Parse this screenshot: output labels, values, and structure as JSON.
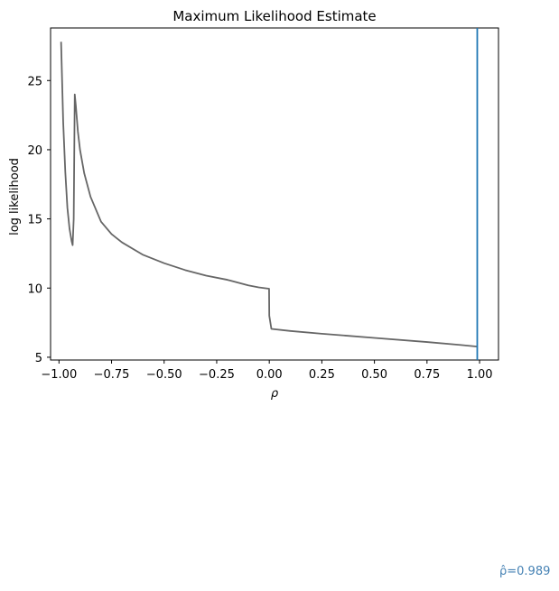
{
  "chart_data": {
    "type": "line",
    "title": "Maximum Likelihood Estimate",
    "xlabel": "ρ",
    "ylabel": "log likelihood",
    "xlim": [
      -1.04,
      1.09
    ],
    "ylim": [
      4.8,
      28.8
    ],
    "xticks": [
      -1.0,
      -0.75,
      -0.5,
      -0.25,
      0.0,
      0.25,
      0.5,
      0.75,
      1.0
    ],
    "xtick_labels": [
      "−1.00",
      "−0.75",
      "−0.50",
      "−0.25",
      "0.00",
      "0.25",
      "0.50",
      "0.75",
      "1.00"
    ],
    "yticks": [
      5,
      10,
      15,
      20,
      25
    ],
    "ytick_labels": [
      "5",
      "10",
      "15",
      "20",
      "25"
    ],
    "grid": false,
    "series": [
      {
        "color": "#666666",
        "x": [
          -0.99,
          -0.98,
          -0.97,
          -0.96,
          -0.95,
          -0.94,
          -0.935,
          -0.93,
          -0.925,
          -0.92,
          -0.91,
          -0.9,
          -0.88,
          -0.85,
          -0.8,
          -0.75,
          -0.7,
          -0.6,
          -0.5,
          -0.4,
          -0.3,
          -0.2,
          -0.1,
          -0.05,
          -0.001,
          0.0,
          0.01,
          0.1,
          0.25,
          0.5,
          0.75,
          0.9,
          0.989
        ],
        "y": [
          27.8,
          22.0,
          18.4,
          15.8,
          14.3,
          13.4,
          13.1,
          15.0,
          24.0,
          23.2,
          21.3,
          20.0,
          18.3,
          16.6,
          14.8,
          13.9,
          13.3,
          12.4,
          11.8,
          11.3,
          10.9,
          10.6,
          10.2,
          10.05,
          9.95,
          8.0,
          7.05,
          6.9,
          6.7,
          6.4,
          6.1,
          5.9,
          5.77
        ]
      }
    ],
    "vline": {
      "x": 0.989,
      "color": "#1f77b4"
    },
    "annotation": {
      "text": "ρ̂=0.989",
      "color": "#4682b4"
    }
  }
}
